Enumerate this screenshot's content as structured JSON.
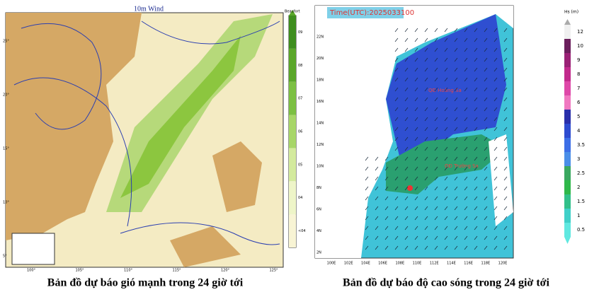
{
  "wind_map": {
    "title": "10m Wind",
    "legend_title": "Beaufort",
    "legend_labels": [
      "09",
      "08",
      "07",
      "06",
      "05",
      "04",
      "<04"
    ],
    "lat_labels": [
      "25°",
      "20°",
      "15°",
      "10°",
      "5°"
    ],
    "lon_labels": [
      "100°",
      "105°",
      "110°",
      "115°",
      "120°",
      "125°"
    ],
    "caption": "Bản đồ dự báo gió mạnh trong 24 giờ tới"
  },
  "wave_map": {
    "time": "Time(UTC):2025033100",
    "places": [
      "QĐ Hoàng Sa",
      "QĐ Trường Sa"
    ],
    "lat_labels": [
      "22N",
      "20N",
      "18N",
      "16N",
      "14N",
      "12N",
      "10N",
      "8N",
      "6N",
      "4N",
      "2N"
    ],
    "lon_labels": [
      "100E",
      "102E",
      "104E",
      "106E",
      "108E",
      "110E",
      "112E",
      "114E",
      "116E",
      "118E",
      "120E"
    ],
    "legend_title": "Hs (m)",
    "legend_labels": [
      "12",
      "10",
      "9",
      "8",
      "7",
      "6",
      "5",
      "4",
      "3.5",
      "3",
      "2.5",
      "2",
      "1.5",
      "1",
      "0.5"
    ],
    "caption": "Bản đồ dự báo độ cao sóng trong 24 giờ tới"
  }
}
